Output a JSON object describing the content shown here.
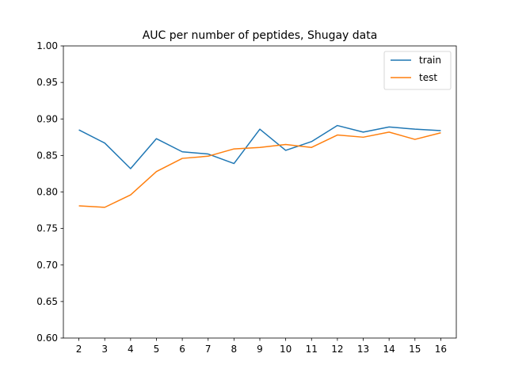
{
  "chart_data": {
    "type": "line",
    "title": "AUC per number of peptides, Shugay data",
    "xlabel": "",
    "ylabel": "",
    "x": [
      2,
      3,
      4,
      5,
      6,
      7,
      8,
      9,
      10,
      11,
      12,
      13,
      14,
      15,
      16
    ],
    "xlim": [
      1.4,
      16.6
    ],
    "ylim": [
      0.6,
      1.0
    ],
    "yticks": [
      "0.60",
      "0.65",
      "0.70",
      "0.75",
      "0.80",
      "0.85",
      "0.90",
      "0.95",
      "1.00"
    ],
    "xticks": [
      "2",
      "3",
      "4",
      "5",
      "6",
      "7",
      "8",
      "9",
      "10",
      "11",
      "12",
      "13",
      "14",
      "15",
      "16"
    ],
    "grid": false,
    "legend_position": "top-right",
    "series": [
      {
        "name": "train",
        "color": "#1f77b4",
        "values": [
          0.885,
          0.867,
          0.832,
          0.873,
          0.855,
          0.852,
          0.839,
          0.886,
          0.857,
          0.869,
          0.891,
          0.882,
          0.889,
          0.886,
          0.884
        ]
      },
      {
        "name": "test",
        "color": "#ff7f0e",
        "values": [
          0.781,
          0.779,
          0.796,
          0.828,
          0.846,
          0.849,
          0.859,
          0.861,
          0.865,
          0.861,
          0.878,
          0.875,
          0.882,
          0.872,
          0.881
        ]
      }
    ]
  }
}
